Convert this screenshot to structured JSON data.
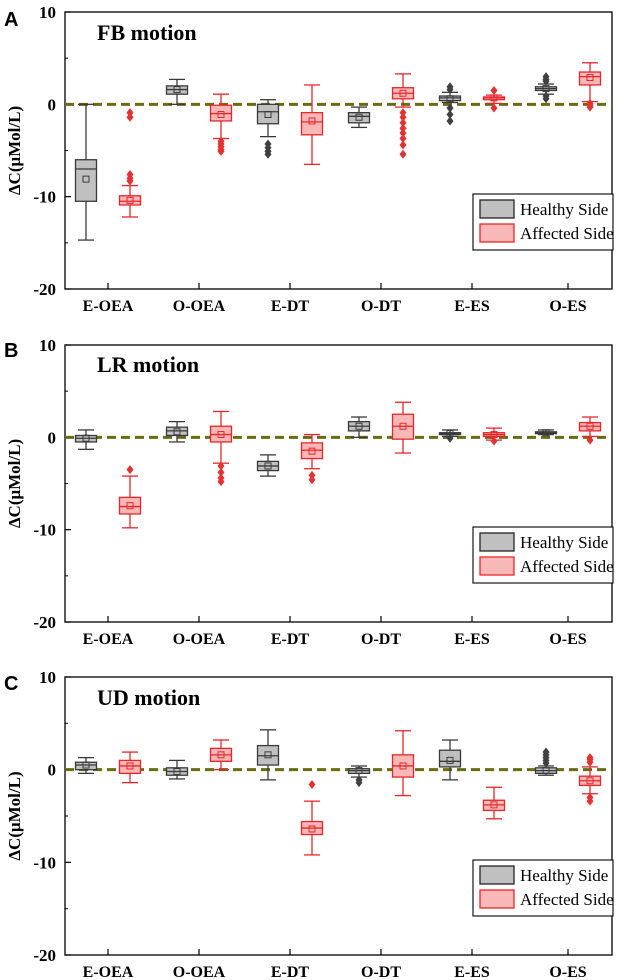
{
  "colors": {
    "healthy_fill": "#c0c0c0",
    "healthy_stroke": "#3a3a3a",
    "affected_fill": "#f9b8b8",
    "affected_stroke": "#e8262a",
    "zero_line": "#6b6b12"
  },
  "legend": [
    "Healthy Side",
    "Affected Side"
  ],
  "chart_data": [
    {
      "type": "boxplot",
      "panel": "A",
      "title": "FB motion",
      "ylabel": "ΔC(μMol/L)",
      "ylim": [
        -20,
        10
      ],
      "yticks": [
        10,
        0,
        -10,
        -20
      ],
      "categories": [
        "E-OEA",
        "O-OEA",
        "E-DT",
        "O-DT",
        "E-ES",
        "O-ES"
      ],
      "series": [
        {
          "name": "Healthy Side",
          "boxes": [
            {
              "min": -14.7,
              "q1": -10.5,
              "median": -7.0,
              "q3": -6.0,
              "max": 0.0,
              "mean": -8.1,
              "outliers": []
            },
            {
              "min": 0.0,
              "q1": 1.1,
              "median": 1.6,
              "q3": 2.0,
              "max": 2.7,
              "mean": 1.6,
              "outliers": []
            },
            {
              "min": -3.5,
              "q1": -2.1,
              "median": -0.8,
              "q3": 0.0,
              "max": 0.5,
              "mean": -1.1,
              "outliers": [
                -4.3,
                -4.7,
                -5.1,
                -5.4
              ]
            },
            {
              "min": -2.5,
              "q1": -2.0,
              "median": -1.3,
              "q3": -0.9,
              "max": -0.3,
              "mean": -1.4,
              "outliers": []
            },
            {
              "min": 0.2,
              "q1": 0.4,
              "median": 0.7,
              "q3": 0.9,
              "max": 1.3,
              "mean": 0.6,
              "outliers": [
                1.9,
                1.6,
                -0.4,
                -1.1,
                -1.8
              ]
            },
            {
              "min": 1.1,
              "q1": 1.5,
              "median": 1.7,
              "q3": 1.9,
              "max": 2.2,
              "mean": 1.7,
              "outliers": [
                3.0,
                2.7,
                2.5,
                0.9,
                0.6
              ]
            }
          ]
        },
        {
          "name": "Affected Side",
          "boxes": [
            {
              "min": -12.2,
              "q1": -10.9,
              "median": -10.5,
              "q3": -9.9,
              "max": -8.8,
              "mean": -10.4,
              "outliers": [
                -0.9,
                -1.4,
                -7.6,
                -8.0,
                -8.3
              ]
            },
            {
              "min": -3.7,
              "q1": -1.8,
              "median": -1.0,
              "q3": -0.1,
              "max": 1.1,
              "mean": -1.1,
              "outliers": [
                -4.0,
                -4.3,
                -4.6,
                -4.9,
                -5.1
              ]
            },
            {
              "min": -6.5,
              "q1": -3.3,
              "median": -1.9,
              "q3": -0.9,
              "max": 2.1,
              "mean": -1.8,
              "outliers": []
            },
            {
              "min": -0.3,
              "q1": 0.6,
              "median": 1.2,
              "q3": 1.8,
              "max": 3.3,
              "mean": 1.2,
              "outliers": [
                -0.9,
                -1.4,
                -2.0,
                -2.6,
                -3.1,
                -3.7,
                -4.4,
                -5.4
              ]
            },
            {
              "min": 0.1,
              "q1": 0.5,
              "median": 0.7,
              "q3": 0.8,
              "max": 1.0,
              "mean": 0.7,
              "outliers": [
                1.5,
                -0.4
              ]
            },
            {
              "min": 0.3,
              "q1": 2.1,
              "median": 3.0,
              "q3": 3.5,
              "max": 4.5,
              "mean": 2.9,
              "outliers": [
                0.1,
                -0.1,
                -0.3
              ]
            }
          ]
        }
      ]
    },
    {
      "type": "boxplot",
      "panel": "B",
      "title": "LR motion",
      "ylabel": "ΔC(μMol/L)",
      "ylim": [
        -20,
        10
      ],
      "yticks": [
        10,
        0,
        -10,
        -20
      ],
      "categories": [
        "E-OEA",
        "O-OEA",
        "E-DT",
        "O-DT",
        "E-ES",
        "O-ES"
      ],
      "series": [
        {
          "name": "Healthy Side",
          "boxes": [
            {
              "min": -1.3,
              "q1": -0.5,
              "median": -0.1,
              "q3": 0.2,
              "max": 0.8,
              "mean": -0.1,
              "outliers": []
            },
            {
              "min": -0.5,
              "q1": 0.2,
              "median": 0.7,
              "q3": 1.1,
              "max": 1.7,
              "mean": 0.6,
              "outliers": []
            },
            {
              "min": -4.2,
              "q1": -3.6,
              "median": -3.1,
              "q3": -2.6,
              "max": -1.9,
              "mean": -3.1,
              "outliers": []
            },
            {
              "min": 0.0,
              "q1": 0.7,
              "median": 1.2,
              "q3": 1.7,
              "max": 2.2,
              "mean": 1.2,
              "outliers": []
            },
            {
              "min": 0.1,
              "q1": 0.3,
              "median": 0.4,
              "q3": 0.5,
              "max": 0.8,
              "mean": 0.4,
              "outliers": [
                -0.1
              ]
            },
            {
              "min": 0.3,
              "q1": 0.4,
              "median": 0.5,
              "q3": 0.6,
              "max": 0.8,
              "mean": 0.5,
              "outliers": []
            }
          ]
        },
        {
          "name": "Affected Side",
          "boxes": [
            {
              "min": -9.8,
              "q1": -8.3,
              "median": -7.5,
              "q3": -6.5,
              "max": -4.2,
              "mean": -7.4,
              "outliers": [
                -3.5
              ]
            },
            {
              "min": -2.8,
              "q1": -0.5,
              "median": 0.3,
              "q3": 1.2,
              "max": 2.8,
              "mean": 0.3,
              "outliers": [
                -3.1,
                -3.8,
                -4.4,
                -4.8
              ]
            },
            {
              "min": -3.4,
              "q1": -2.3,
              "median": -1.4,
              "q3": -0.6,
              "max": 0.3,
              "mean": -1.5,
              "outliers": [
                -4.1,
                -4.6
              ]
            },
            {
              "min": -1.7,
              "q1": -0.2,
              "median": 1.2,
              "q3": 2.5,
              "max": 3.8,
              "mean": 1.2,
              "outliers": []
            },
            {
              "min": -0.3,
              "q1": 0.1,
              "median": 0.3,
              "q3": 0.5,
              "max": 1.0,
              "mean": 0.3,
              "outliers": [
                -0.4
              ]
            },
            {
              "min": 0.1,
              "q1": 0.7,
              "median": 1.2,
              "q3": 1.6,
              "max": 2.2,
              "mean": 1.2,
              "outliers": [
                -0.3
              ]
            }
          ]
        }
      ]
    },
    {
      "type": "boxplot",
      "panel": "C",
      "title": "UD motion",
      "ylabel": "ΔC(μMol/L)",
      "ylim": [
        -20,
        10
      ],
      "yticks": [
        10,
        0,
        -10,
        -20
      ],
      "categories": [
        "E-OEA",
        "O-OEA",
        "E-DT",
        "O-DT",
        "E-ES",
        "O-ES"
      ],
      "series": [
        {
          "name": "Healthy Side",
          "boxes": [
            {
              "min": -0.4,
              "q1": 0.0,
              "median": 0.5,
              "q3": 0.8,
              "max": 1.3,
              "mean": 0.5,
              "outliers": []
            },
            {
              "min": -1.0,
              "q1": -0.6,
              "median": -0.2,
              "q3": 0.2,
              "max": 1.0,
              "mean": -0.2,
              "outliers": []
            },
            {
              "min": -1.1,
              "q1": 0.5,
              "median": 1.5,
              "q3": 2.6,
              "max": 4.3,
              "mean": 1.6,
              "outliers": []
            },
            {
              "min": -0.8,
              "q1": -0.4,
              "median": -0.1,
              "q3": 0.1,
              "max": 0.4,
              "mean": -0.1,
              "outliers": [
                -1.1,
                -1.4
              ]
            },
            {
              "min": -1.1,
              "q1": 0.3,
              "median": 0.9,
              "q3": 2.1,
              "max": 3.2,
              "mean": 1.0,
              "outliers": []
            },
            {
              "min": -0.6,
              "q1": -0.4,
              "median": -0.1,
              "q3": 0.2,
              "max": 0.4,
              "mean": -0.1,
              "outliers": [
                0.7,
                1.0,
                1.3,
                1.6,
                1.9
              ]
            }
          ]
        },
        {
          "name": "Affected Side",
          "boxes": [
            {
              "min": -1.4,
              "q1": -0.4,
              "median": 0.4,
              "q3": 1.0,
              "max": 1.9,
              "mean": 0.4,
              "outliers": []
            },
            {
              "min": 0.0,
              "q1": 0.9,
              "median": 1.6,
              "q3": 2.3,
              "max": 3.2,
              "mean": 1.6,
              "outliers": []
            },
            {
              "min": -9.2,
              "q1": -7.0,
              "median": -6.3,
              "q3": -5.6,
              "max": -3.4,
              "mean": -6.4,
              "outliers": [
                -1.6
              ]
            },
            {
              "min": -2.8,
              "q1": -0.8,
              "median": 0.4,
              "q3": 1.6,
              "max": 4.2,
              "mean": 0.4,
              "outliers": []
            },
            {
              "min": -5.3,
              "q1": -4.4,
              "median": -3.8,
              "q3": -3.3,
              "max": -1.9,
              "mean": -3.8,
              "outliers": []
            },
            {
              "min": -2.6,
              "q1": -1.7,
              "median": -1.2,
              "q3": -0.7,
              "max": 0.3,
              "mean": -1.2,
              "outliers": [
                -3.0,
                -3.4,
                0.8,
                1.1,
                1.3
              ]
            }
          ]
        }
      ]
    }
  ]
}
